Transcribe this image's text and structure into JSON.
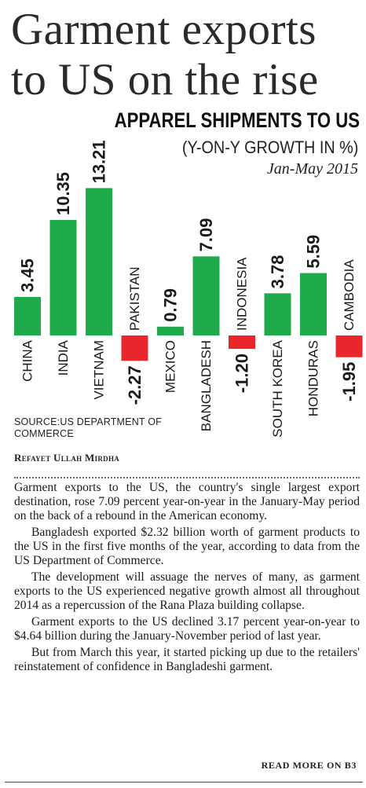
{
  "headline": [
    "Garment exports",
    "to US on the rise"
  ],
  "chart_data": {
    "type": "bar",
    "title": "APPAREL SHIPMENTS TO US",
    "subtitle": "(Y-ON-Y GROWTH IN %)",
    "period": "Jan-May 2015",
    "categories": [
      "CHINA",
      "INDIA",
      "VIETNAM",
      "PAKISTAN",
      "MEXICO",
      "BANGLADESH",
      "INDONESIA",
      "SOUTH KOREA",
      "HONDURAS",
      "CAMBODIA"
    ],
    "values": [
      3.45,
      10.35,
      13.21,
      -2.27,
      0.79,
      7.09,
      -1.2,
      3.78,
      5.59,
      -1.95
    ],
    "labels": [
      "3.45",
      "10.35",
      "13.21",
      "-2.27",
      "0.79",
      "7.09",
      "-1.20",
      "3.78",
      "5.59",
      "-1.95"
    ],
    "colors": {
      "positive": "#1faa4b",
      "negative": "#e8262b"
    },
    "source": "SOURCE:US DEPARTMENT OF COMMERCE",
    "grid": false,
    "legend": "none"
  },
  "byline": "Refayet Ullah Mirdha",
  "article": [
    "Garment exports to the US, the country's single largest export destination, rose 7.09 percent year-on-year in the January-May period on the back of a rebound in the American economy.",
    "Bangladesh exported $2.32 billion worth of garment products to the US in the first five months of the year, according to data from the US Department of Commerce.",
    "The development will assuage the nerves of many, as garment exports to the US experienced negative growth almost all throughout 2014 as a repercussion of the Rana Plaza building collapse.",
    "Garment exports to the US declined 3.17 percent year-on-year to $4.64 billion during the January-November period of last year.",
    "But from March this year, it started picking up due to the retailers' reinstatement of confidence in Bangladeshi garment."
  ],
  "read_more": "READ MORE ON B3"
}
